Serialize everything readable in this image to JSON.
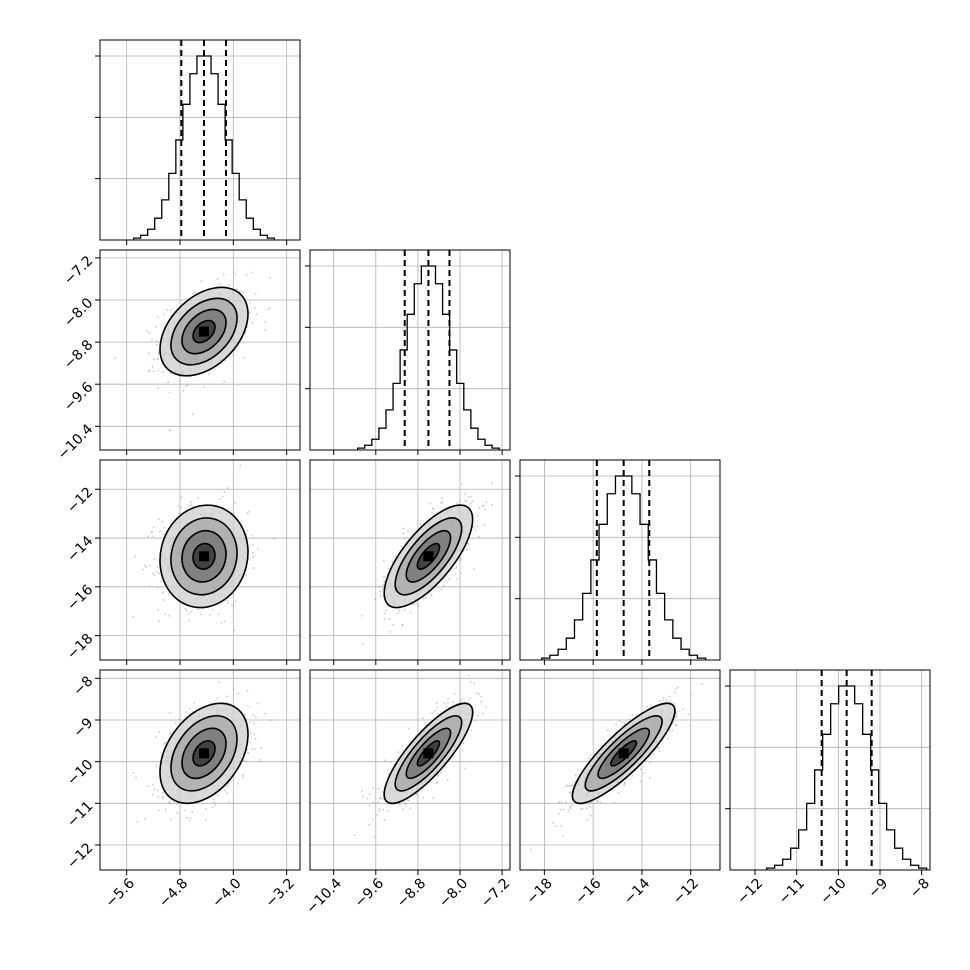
{
  "chart_data": {
    "type": "corner",
    "parameters": [
      {
        "median": -4.44,
        "q16": -4.78,
        "q84": -4.11,
        "sigma": 0.33,
        "range": [
          -6.0,
          -3.0
        ],
        "ticks": [
          -5.6,
          -4.8,
          -4.0,
          -3.2
        ],
        "tick_labels": [
          "−5.6",
          "−4.8",
          "−4.0",
          "−3.2"
        ]
      },
      {
        "median": -8.6,
        "q16": -9.05,
        "q84": -8.2,
        "sigma": 0.42,
        "range": [
          -10.85,
          -7.05
        ],
        "ticks": [
          -10.4,
          -9.6,
          -8.8,
          -8.0,
          -7.2
        ],
        "tick_labels": [
          "−10.4",
          "−9.6",
          "−8.8",
          "−8.0",
          "−7.2"
        ]
      },
      {
        "median": -14.75,
        "q16": -15.85,
        "q84": -13.7,
        "sigma": 1.05,
        "range": [
          -19.0,
          -10.8
        ],
        "ticks": [
          -18,
          -16,
          -14,
          -12
        ],
        "tick_labels": [
          "−18",
          "−16",
          "−14",
          "−12"
        ]
      },
      {
        "median": -9.8,
        "q16": -10.4,
        "q84": -9.2,
        "sigma": 0.6,
        "range": [
          -12.6,
          -7.8
        ],
        "ticks": [
          -12,
          -11,
          -10,
          -9,
          -8
        ],
        "tick_labels": [
          "−12",
          "−11",
          "−10",
          "−9",
          "−8"
        ]
      }
    ],
    "correlations": [
      [
        1.0,
        0.4,
        0.08,
        0.38
      ],
      [
        0.4,
        1.0,
        0.72,
        0.82
      ],
      [
        0.08,
        0.72,
        1.0,
        0.85
      ],
      [
        0.38,
        0.82,
        0.85,
        1.0
      ]
    ],
    "histogram_bins": 20,
    "contour_levels_sigma": [
      0.5,
      1.0,
      1.5,
      2.0
    ],
    "quantiles": [
      0.16,
      0.5,
      0.84
    ],
    "grid": true,
    "colors": {
      "points": "#9e9e9e",
      "hist": "#000000",
      "contour": "#000000"
    }
  }
}
